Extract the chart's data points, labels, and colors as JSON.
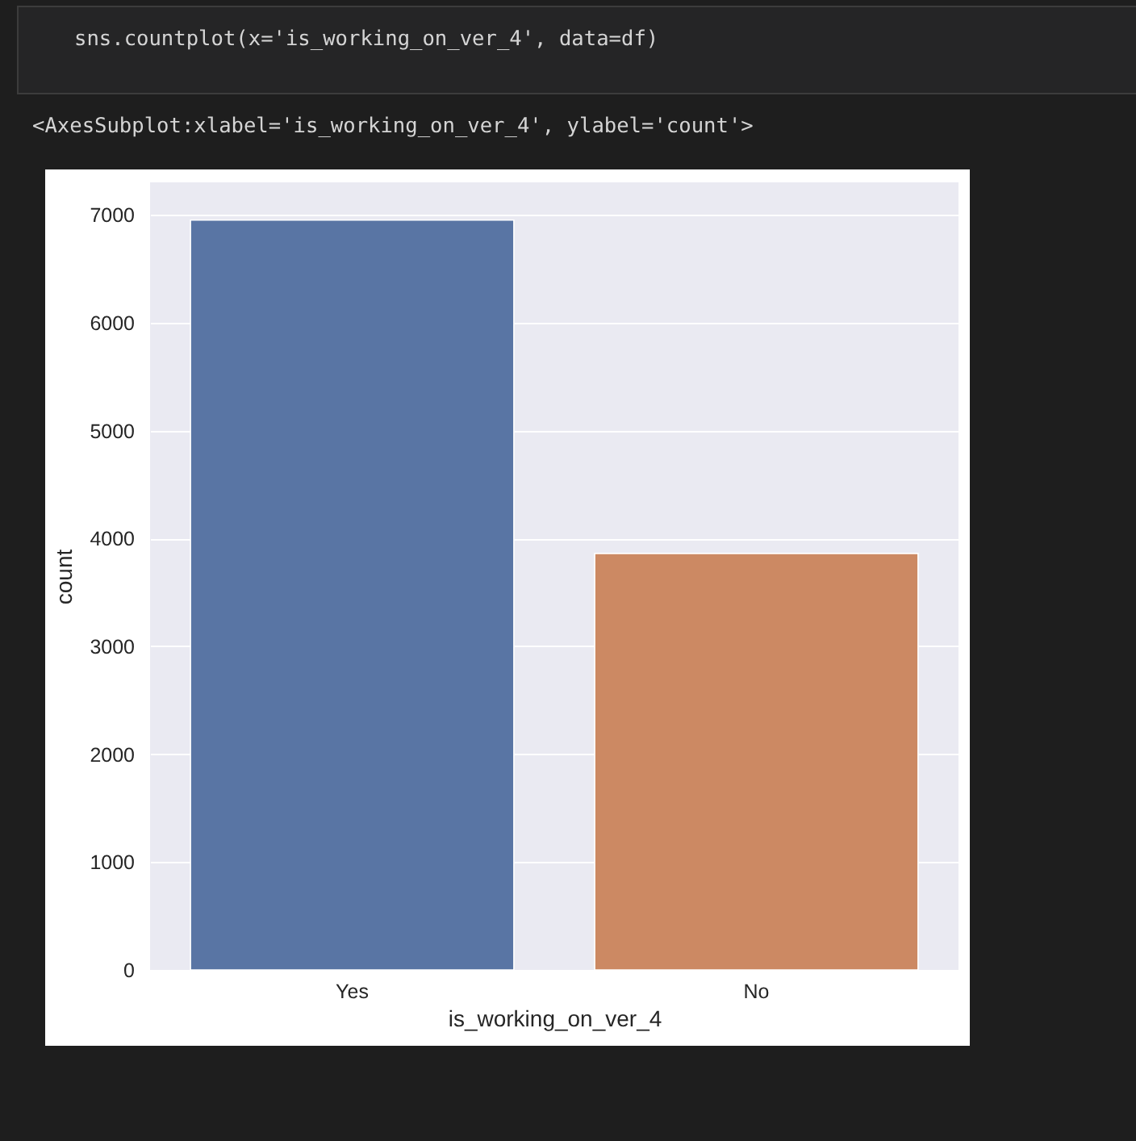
{
  "chart_data": {
    "type": "bar",
    "annotations": [
      "sns.countplot(x='is_working_on_ver_4', data=df)",
      "<AxesSubplot:xlabel='is_working_on_ver_4', ylabel='count'>"
    ],
    "xlabel": "is_working_on_ver_4",
    "ylabel": "count",
    "categories": [
      "Yes",
      "No"
    ],
    "values": [
      6950,
      3860
    ],
    "colors": [
      "#5975a4",
      "#cc8963"
    ],
    "ylim": [
      0,
      7300
    ],
    "yticks": [
      0,
      1000,
      2000,
      3000,
      4000,
      5000,
      6000,
      7000
    ],
    "grid": "y"
  }
}
